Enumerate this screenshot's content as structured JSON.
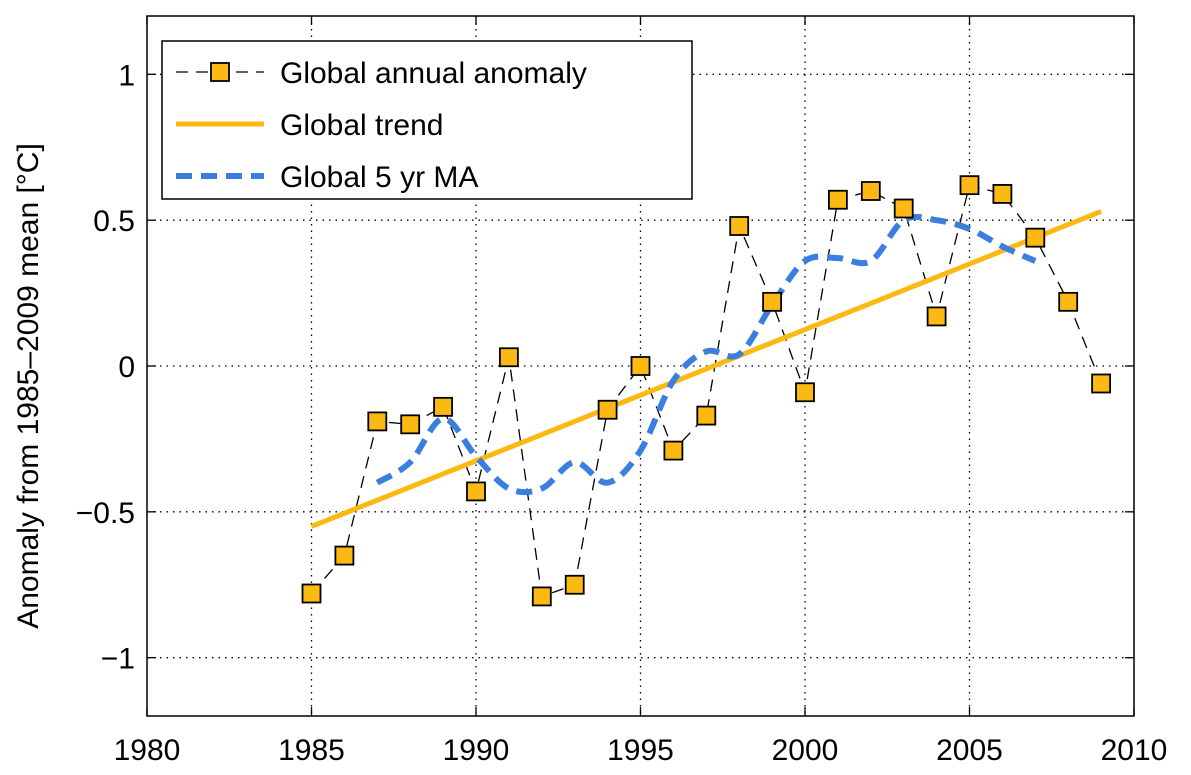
{
  "chart_data": {
    "type": "line",
    "xlim": [
      1980,
      2010
    ],
    "ylim": [
      -1.2,
      1.2
    ],
    "grid": true,
    "legend_position": "top-left",
    "xlabel": "",
    "ylabel": "Anomaly from 1985–2009 mean [°C]",
    "x_ticks": [
      1980,
      1985,
      1990,
      1995,
      2000,
      2005,
      2010
    ],
    "y_ticks": [
      -1,
      -0.5,
      0,
      0.5,
      1
    ],
    "x_tick_labels": [
      "1980",
      "1985",
      "1990",
      "1995",
      "2000",
      "2005",
      "2010"
    ],
    "y_tick_labels": [
      "−1",
      "−0.5",
      "0",
      "0.5",
      "1"
    ],
    "colors": {
      "anomaly_fill": "#FDB913",
      "trend": "#FDB913",
      "moving_average": "#3A7FE0",
      "grid": "#000000"
    },
    "series": [
      {
        "name": "Global annual anomaly",
        "style": "dashed-black-square-markers",
        "x": [
          1985,
          1986,
          1987,
          1988,
          1989,
          1990,
          1991,
          1992,
          1993,
          1994,
          1995,
          1996,
          1997,
          1998,
          1999,
          2000,
          2001,
          2002,
          2003,
          2004,
          2005,
          2006,
          2007,
          2008,
          2009
        ],
        "values": [
          -0.78,
          -0.65,
          -0.19,
          -0.2,
          -0.14,
          -0.43,
          0.03,
          -0.79,
          -0.75,
          -0.15,
          0.0,
          -0.29,
          -0.17,
          0.48,
          0.22,
          -0.09,
          0.57,
          0.6,
          0.54,
          0.17,
          0.62,
          0.59,
          0.44,
          0.22,
          -0.06
        ]
      },
      {
        "name": "Global trend",
        "style": "solid-thick",
        "x": [
          1985,
          2009
        ],
        "values": [
          -0.55,
          0.53
        ]
      },
      {
        "name": "Global 5 yr MA",
        "style": "dashed-thick",
        "x": [
          1987,
          1988,
          1989,
          1990,
          1991,
          1992,
          1993,
          1994,
          1995,
          1996,
          1997,
          1998,
          1999,
          2000,
          2001,
          2002,
          2003,
          2004,
          2005,
          2006,
          2007
        ],
        "values": [
          -0.4,
          -0.33,
          -0.18,
          -0.31,
          -0.42,
          -0.42,
          -0.33,
          -0.4,
          -0.29,
          -0.05,
          0.05,
          0.04,
          0.21,
          0.36,
          0.37,
          0.36,
          0.5,
          0.5,
          0.47,
          0.41,
          0.36
        ]
      }
    ]
  }
}
